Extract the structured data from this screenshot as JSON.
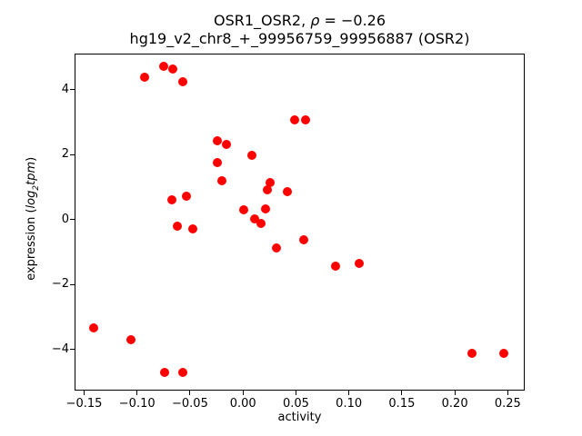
{
  "figure": {
    "title": {
      "line1_prefix": "OSR1_OSR2, ",
      "line1_rho": "ρ",
      "line1_suffix": " = −0.26",
      "line2": "hg19_v2_chr8_+_99956759_99956887 (OSR2)"
    },
    "xlabel": "activity",
    "ylabel": {
      "p1": "expression (",
      "p2": "log",
      "p3": "2",
      "p4": "tpm",
      "p5": ")"
    }
  },
  "chart_data": {
    "type": "scatter",
    "title": "OSR1_OSR2, ρ = −0.26\nhg19_v2_chr8_+_99956759_99956887 (OSR2)",
    "xlabel": "activity",
    "ylabel": "expression (log2 tpm)",
    "marker_color": "#ff0000",
    "marker_diameter_px": 10,
    "grid": false,
    "legend": null,
    "xlim": [
      -0.159,
      0.266
    ],
    "ylim": [
      -5.27,
      5.12
    ],
    "x_ticks": {
      "values": [
        -0.15,
        -0.1,
        -0.05,
        0.0,
        0.05,
        0.1,
        0.15,
        0.2,
        0.25
      ],
      "labels": [
        "−0.15",
        "−0.10",
        "−0.05",
        "0.00",
        "0.05",
        "0.10",
        "0.15",
        "0.20",
        "0.25"
      ]
    },
    "y_ticks": {
      "values": [
        -4,
        -2,
        0,
        2,
        4
      ],
      "labels": [
        "−4",
        "−2",
        "0",
        "2",
        "4"
      ]
    },
    "points": [
      [
        -0.093,
        4.4
      ],
      [
        -0.075,
        4.73
      ],
      [
        -0.066,
        4.65
      ],
      [
        -0.057,
        4.26
      ],
      [
        0.049,
        3.07
      ],
      [
        0.059,
        3.07
      ],
      [
        -0.024,
        2.43
      ],
      [
        -0.016,
        2.33
      ],
      [
        0.008,
        1.98
      ],
      [
        -0.024,
        1.77
      ],
      [
        -0.02,
        1.19
      ],
      [
        0.026,
        1.14
      ],
      [
        0.023,
        0.91
      ],
      [
        0.042,
        0.87
      ],
      [
        -0.067,
        0.62
      ],
      [
        -0.053,
        0.72
      ],
      [
        0.001,
        0.3
      ],
      [
        0.021,
        0.34
      ],
      [
        0.011,
        0.01
      ],
      [
        0.017,
        -0.12
      ],
      [
        -0.062,
        -0.21
      ],
      [
        -0.047,
        -0.29
      ],
      [
        0.032,
        -0.87
      ],
      [
        0.057,
        -0.61
      ],
      [
        0.087,
        -1.42
      ],
      [
        0.11,
        -1.34
      ],
      [
        -0.141,
        -3.33
      ],
      [
        -0.106,
        -3.7
      ],
      [
        -0.074,
        -4.72
      ],
      [
        -0.057,
        -4.72
      ],
      [
        0.216,
        -4.12
      ],
      [
        0.246,
        -4.13
      ]
    ]
  }
}
